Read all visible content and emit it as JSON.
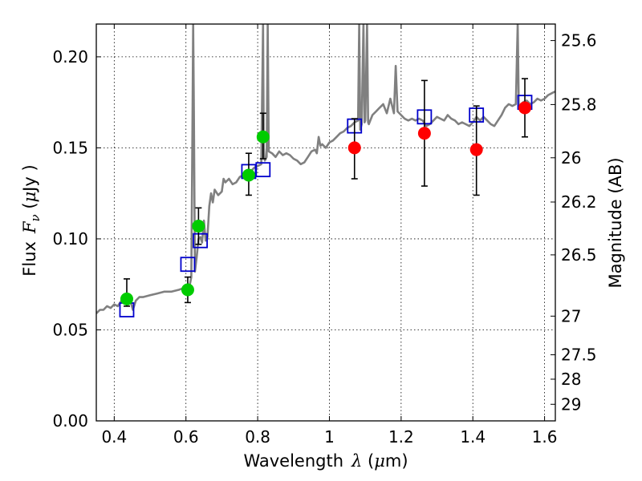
{
  "chart_data": {
    "type": "scatter",
    "xlabel": {
      "text": "Wavelength",
      "symbol": "λ",
      "unit_open": " (",
      "unit_mu": "μ",
      "unit_rest": "m)"
    },
    "ylabel": {
      "text": "Flux",
      "symbol": "F",
      "subscript": "ν",
      "unit_open": "  (",
      "unit_mu": "μ",
      "unit_rest": "Jy )"
    },
    "y2label": "Magnitude (AB)",
    "xlim": [
      0.35,
      1.63
    ],
    "ylim": [
      0.0,
      0.218
    ],
    "grid": true,
    "x_ticks": [
      {
        "value": 0.4,
        "label": "0.4"
      },
      {
        "value": 0.6,
        "label": "0.6"
      },
      {
        "value": 0.8,
        "label": "0.8"
      },
      {
        "value": 1.0,
        "label": "1"
      },
      {
        "value": 1.2,
        "label": "1.2"
      },
      {
        "value": 1.4,
        "label": "1.4"
      },
      {
        "value": 1.6,
        "label": "1.6"
      }
    ],
    "y_ticks": [
      {
        "value": 0.0,
        "label": "0.00"
      },
      {
        "value": 0.05,
        "label": "0.05"
      },
      {
        "value": 0.1,
        "label": "0.10"
      },
      {
        "value": 0.15,
        "label": "0.15"
      },
      {
        "value": 0.2,
        "label": "0.20"
      }
    ],
    "y2_ticks": [
      {
        "value": 25.6,
        "label": "25.6"
      },
      {
        "value": 25.8,
        "label": "25.8"
      },
      {
        "value": 26.0,
        "label": "26"
      },
      {
        "value": 26.2,
        "label": "26.2"
      },
      {
        "value": 26.5,
        "label": "26.5"
      },
      {
        "value": 27.0,
        "label": "27"
      },
      {
        "value": 27.5,
        "label": "27.5"
      },
      {
        "value": 28.0,
        "label": "28"
      },
      {
        "value": 29.0,
        "label": "29"
      }
    ],
    "model_spectrum": {
      "color": "#808080",
      "points": [
        [
          0.35,
          0.059
        ],
        [
          0.36,
          0.061
        ],
        [
          0.37,
          0.061
        ],
        [
          0.38,
          0.063
        ],
        [
          0.39,
          0.062
        ],
        [
          0.4,
          0.064
        ],
        [
          0.41,
          0.063
        ],
        [
          0.42,
          0.066
        ],
        [
          0.43,
          0.065
        ],
        [
          0.44,
          0.064
        ],
        [
          0.445,
          0.066
        ],
        [
          0.452,
          0.061
        ],
        [
          0.46,
          0.066
        ],
        [
          0.47,
          0.068
        ],
        [
          0.48,
          0.068
        ],
        [
          0.5,
          0.069
        ],
        [
          0.52,
          0.07
        ],
        [
          0.54,
          0.071
        ],
        [
          0.56,
          0.071
        ],
        [
          0.58,
          0.072
        ],
        [
          0.595,
          0.073
        ],
        [
          0.6,
          0.072
        ],
        [
          0.61,
          0.074
        ],
        [
          0.615,
          0.079
        ],
        [
          0.618,
          0.16
        ],
        [
          0.62,
          0.218
        ],
        [
          0.622,
          0.17
        ],
        [
          0.625,
          0.082
        ],
        [
          0.63,
          0.09
        ],
        [
          0.635,
          0.1
        ],
        [
          0.64,
          0.101
        ],
        [
          0.645,
          0.098
        ],
        [
          0.65,
          0.11
        ],
        [
          0.655,
          0.099
        ],
        [
          0.66,
          0.101
        ],
        [
          0.665,
          0.118
        ],
        [
          0.67,
          0.125
        ],
        [
          0.675,
          0.12
        ],
        [
          0.68,
          0.127
        ],
        [
          0.69,
          0.124
        ],
        [
          0.7,
          0.126
        ],
        [
          0.705,
          0.133
        ],
        [
          0.71,
          0.131
        ],
        [
          0.72,
          0.133
        ],
        [
          0.73,
          0.13
        ],
        [
          0.74,
          0.131
        ],
        [
          0.75,
          0.134
        ],
        [
          0.76,
          0.135
        ],
        [
          0.77,
          0.136
        ],
        [
          0.78,
          0.137
        ],
        [
          0.79,
          0.139
        ],
        [
          0.8,
          0.14
        ],
        [
          0.81,
          0.141
        ],
        [
          0.815,
          0.218
        ],
        [
          0.817,
          0.15
        ],
        [
          0.82,
          0.143
        ],
        [
          0.825,
          0.145
        ],
        [
          0.828,
          0.218
        ],
        [
          0.831,
          0.148
        ],
        [
          0.84,
          0.147
        ],
        [
          0.85,
          0.145
        ],
        [
          0.86,
          0.148
        ],
        [
          0.87,
          0.146
        ],
        [
          0.88,
          0.147
        ],
        [
          0.89,
          0.146
        ],
        [
          0.9,
          0.144
        ],
        [
          0.91,
          0.143
        ],
        [
          0.92,
          0.141
        ],
        [
          0.93,
          0.142
        ],
        [
          0.94,
          0.145
        ],
        [
          0.95,
          0.148
        ],
        [
          0.96,
          0.149
        ],
        [
          0.965,
          0.147
        ],
        [
          0.97,
          0.156
        ],
        [
          0.975,
          0.151
        ],
        [
          0.98,
          0.152
        ],
        [
          0.99,
          0.15
        ],
        [
          1.0,
          0.153
        ],
        [
          1.01,
          0.154
        ],
        [
          1.02,
          0.156
        ],
        [
          1.03,
          0.158
        ],
        [
          1.04,
          0.159
        ],
        [
          1.05,
          0.161
        ],
        [
          1.06,
          0.162
        ],
        [
          1.07,
          0.164
        ],
        [
          1.08,
          0.165
        ],
        [
          1.083,
          0.218
        ],
        [
          1.086,
          0.16
        ],
        [
          1.09,
          0.163
        ],
        [
          1.095,
          0.218
        ],
        [
          1.098,
          0.164
        ],
        [
          1.1,
          0.165
        ],
        [
          1.105,
          0.218
        ],
        [
          1.108,
          0.164
        ],
        [
          1.11,
          0.163
        ],
        [
          1.12,
          0.168
        ],
        [
          1.13,
          0.17
        ],
        [
          1.14,
          0.172
        ],
        [
          1.15,
          0.174
        ],
        [
          1.16,
          0.169
        ],
        [
          1.17,
          0.177
        ],
        [
          1.18,
          0.169
        ],
        [
          1.185,
          0.195
        ],
        [
          1.19,
          0.17
        ],
        [
          1.2,
          0.168
        ],
        [
          1.21,
          0.166
        ],
        [
          1.22,
          0.165
        ],
        [
          1.23,
          0.166
        ],
        [
          1.24,
          0.165
        ],
        [
          1.25,
          0.166
        ],
        [
          1.26,
          0.165
        ],
        [
          1.27,
          0.162
        ],
        [
          1.28,
          0.163
        ],
        [
          1.29,
          0.165
        ],
        [
          1.3,
          0.167
        ],
        [
          1.31,
          0.166
        ],
        [
          1.32,
          0.165
        ],
        [
          1.33,
          0.168
        ],
        [
          1.34,
          0.166
        ],
        [
          1.35,
          0.165
        ],
        [
          1.36,
          0.163
        ],
        [
          1.37,
          0.164
        ],
        [
          1.38,
          0.163
        ],
        [
          1.39,
          0.162
        ],
        [
          1.4,
          0.164
        ],
        [
          1.41,
          0.167
        ],
        [
          1.42,
          0.165
        ],
        [
          1.43,
          0.167
        ],
        [
          1.44,
          0.165
        ],
        [
          1.45,
          0.163
        ],
        [
          1.46,
          0.162
        ],
        [
          1.47,
          0.165
        ],
        [
          1.48,
          0.168
        ],
        [
          1.49,
          0.172
        ],
        [
          1.5,
          0.174
        ],
        [
          1.51,
          0.173
        ],
        [
          1.52,
          0.174
        ],
        [
          1.525,
          0.218
        ],
        [
          1.528,
          0.174
        ],
        [
          1.53,
          0.172
        ],
        [
          1.54,
          0.175
        ],
        [
          1.55,
          0.176
        ],
        [
          1.56,
          0.174
        ],
        [
          1.57,
          0.175
        ],
        [
          1.58,
          0.177
        ],
        [
          1.59,
          0.176
        ],
        [
          1.6,
          0.177
        ],
        [
          1.61,
          0.179
        ],
        [
          1.62,
          0.18
        ],
        [
          1.63,
          0.181
        ]
      ]
    },
    "series": [
      {
        "marker": "square-open",
        "color": "#0000cc",
        "points": [
          [
            0.435,
            0.061
          ],
          [
            0.605,
            0.086
          ],
          [
            0.64,
            0.099
          ],
          [
            0.775,
            0.137
          ],
          [
            0.815,
            0.138
          ],
          [
            1.07,
            0.162
          ],
          [
            1.265,
            0.167
          ],
          [
            1.41,
            0.168
          ],
          [
            1.545,
            0.175
          ]
        ]
      },
      {
        "marker": "circle",
        "color": "#00cc00",
        "points": [
          {
            "x": 0.435,
            "y": 0.067,
            "err_lo": 0.063,
            "err_hi": 0.078
          },
          {
            "x": 0.605,
            "y": 0.072,
            "err_lo": 0.065,
            "err_hi": 0.079
          },
          {
            "x": 0.635,
            "y": 0.107,
            "err_lo": 0.097,
            "err_hi": 0.117
          },
          {
            "x": 0.775,
            "y": 0.135,
            "err_lo": 0.124,
            "err_hi": 0.147
          },
          {
            "x": 0.815,
            "y": 0.156,
            "err_lo": 0.144,
            "err_hi": 0.169
          }
        ]
      },
      {
        "marker": "circle",
        "color": "#ff0000",
        "points": [
          {
            "x": 1.07,
            "y": 0.15,
            "err_lo": 0.133,
            "err_hi": 0.166
          },
          {
            "x": 1.265,
            "y": 0.158,
            "err_lo": 0.129,
            "err_hi": 0.187
          },
          {
            "x": 1.41,
            "y": 0.149,
            "err_lo": 0.124,
            "err_hi": 0.173
          },
          {
            "x": 1.545,
            "y": 0.172,
            "err_lo": 0.156,
            "err_hi": 0.188
          }
        ]
      }
    ]
  }
}
